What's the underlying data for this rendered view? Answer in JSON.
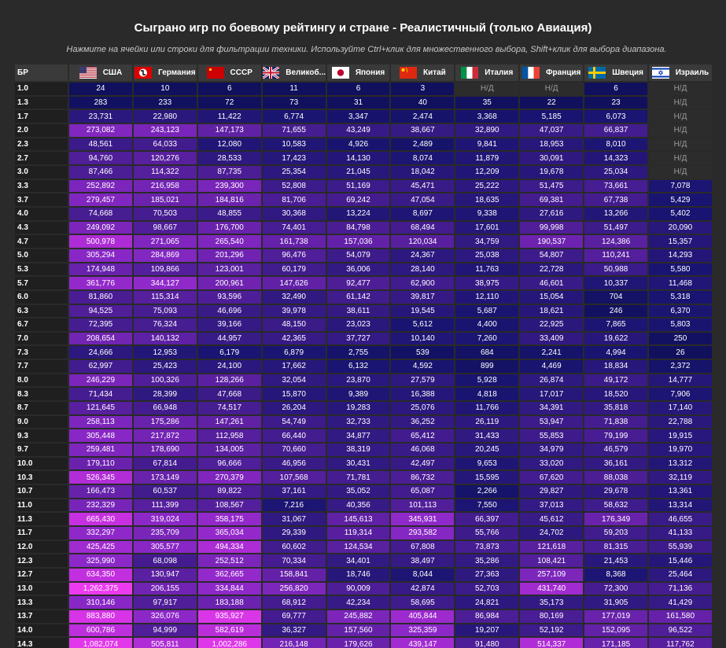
{
  "title": "Сыграно игр по боевому рейтингу и стране - Реалистичный (только Авиация)",
  "hint": "Нажмите на ячейки или строки для фильтрации техники. Используйте Ctrl+клик для множественного выбора, Shift+клик для выбора диапазона.",
  "br_header": "БР",
  "nd_label": "Н/Д",
  "countries": [
    {
      "name": "США",
      "flag": "us-flag-icon"
    },
    {
      "name": "Германия",
      "flag": "germany-flag-icon"
    },
    {
      "name": "СССР",
      "flag": "ussr-flag-icon"
    },
    {
      "name": "Великоб...",
      "flag": "uk-flag-icon"
    },
    {
      "name": "Япония",
      "flag": "japan-flag-icon"
    },
    {
      "name": "Китай",
      "flag": "china-flag-icon"
    },
    {
      "name": "Италия",
      "flag": "italy-flag-icon"
    },
    {
      "name": "Франция",
      "flag": "france-flag-icon"
    },
    {
      "name": "Швеция",
      "flag": "sweden-flag-icon"
    },
    {
      "name": "Израиль",
      "flag": "israel-flag-icon"
    }
  ],
  "rows": [
    {
      "br": "1.0",
      "values": [
        "24",
        "10",
        "6",
        "11",
        "6",
        "3",
        null,
        null,
        "6",
        null
      ]
    },
    {
      "br": "1.3",
      "values": [
        "283",
        "233",
        "72",
        "73",
        "31",
        "40",
        "35",
        "22",
        "23",
        null
      ]
    },
    {
      "br": "1.7",
      "values": [
        "23,731",
        "22,980",
        "11,422",
        "6,774",
        "3,347",
        "2,474",
        "3,368",
        "5,185",
        "6,073",
        null
      ]
    },
    {
      "br": "2.0",
      "values": [
        "273,082",
        "243,123",
        "147,173",
        "71,655",
        "43,249",
        "38,667",
        "32,890",
        "47,037",
        "66,837",
        null
      ]
    },
    {
      "br": "2.3",
      "values": [
        "48,561",
        "64,033",
        "12,080",
        "10,583",
        "4,926",
        "2,489",
        "9,841",
        "18,953",
        "8,010",
        null
      ]
    },
    {
      "br": "2.7",
      "values": [
        "94,760",
        "120,276",
        "28,533",
        "17,423",
        "14,130",
        "8,074",
        "11,879",
        "30,091",
        "14,323",
        null
      ]
    },
    {
      "br": "3.0",
      "values": [
        "87,466",
        "114,322",
        "87,735",
        "25,354",
        "21,045",
        "18,042",
        "12,209",
        "19,678",
        "25,034",
        null
      ]
    },
    {
      "br": "3.3",
      "values": [
        "252,892",
        "216,958",
        "239,300",
        "52,808",
        "51,169",
        "45,471",
        "25,222",
        "51,475",
        "73,661",
        "7,078"
      ]
    },
    {
      "br": "3.7",
      "values": [
        "279,457",
        "185,021",
        "184,816",
        "81,706",
        "69,242",
        "47,054",
        "18,635",
        "69,381",
        "67,738",
        "5,429"
      ]
    },
    {
      "br": "4.0",
      "values": [
        "74,668",
        "70,503",
        "48,855",
        "30,368",
        "13,224",
        "8,697",
        "9,338",
        "27,616",
        "13,266",
        "5,402"
      ]
    },
    {
      "br": "4.3",
      "values": [
        "249,092",
        "98,667",
        "176,700",
        "74,401",
        "84,798",
        "68,494",
        "17,601",
        "99,998",
        "51,497",
        "20,090"
      ]
    },
    {
      "br": "4.7",
      "values": [
        "500,978",
        "271,065",
        "265,540",
        "161,738",
        "157,036",
        "120,034",
        "34,759",
        "190,537",
        "124,386",
        "15,357"
      ]
    },
    {
      "br": "5.0",
      "values": [
        "305,294",
        "284,869",
        "201,296",
        "96,476",
        "54,079",
        "24,367",
        "25,038",
        "54,807",
        "110,241",
        "14,293"
      ]
    },
    {
      "br": "5.3",
      "values": [
        "174,948",
        "109,866",
        "123,001",
        "60,179",
        "36,006",
        "28,140",
        "11,763",
        "22,728",
        "50,988",
        "5,580"
      ]
    },
    {
      "br": "5.7",
      "values": [
        "361,776",
        "344,127",
        "200,961",
        "147,626",
        "92,477",
        "62,900",
        "38,975",
        "46,601",
        "10,337",
        "11,468"
      ]
    },
    {
      "br": "6.0",
      "values": [
        "81,860",
        "115,314",
        "93,596",
        "32,490",
        "61,142",
        "39,817",
        "12,110",
        "15,054",
        "704",
        "5,318"
      ]
    },
    {
      "br": "6.3",
      "values": [
        "94,525",
        "75,093",
        "46,696",
        "39,978",
        "38,611",
        "19,545",
        "5,687",
        "18,621",
        "246",
        "6,370"
      ]
    },
    {
      "br": "6.7",
      "values": [
        "72,395",
        "76,324",
        "39,166",
        "48,150",
        "23,023",
        "5,612",
        "4,400",
        "22,925",
        "7,865",
        "5,803"
      ]
    },
    {
      "br": "7.0",
      "values": [
        "208,654",
        "140,132",
        "44,957",
        "42,365",
        "37,727",
        "10,140",
        "7,260",
        "33,409",
        "19,622",
        "250"
      ]
    },
    {
      "br": "7.3",
      "values": [
        "24,666",
        "12,953",
        "6,179",
        "6,879",
        "2,755",
        "539",
        "684",
        "2,241",
        "4,994",
        "26"
      ]
    },
    {
      "br": "7.7",
      "values": [
        "62,997",
        "25,423",
        "24,100",
        "17,662",
        "6,132",
        "4,592",
        "899",
        "4,469",
        "18,834",
        "2,372"
      ]
    },
    {
      "br": "8.0",
      "values": [
        "246,229",
        "100,326",
        "128,266",
        "32,054",
        "23,870",
        "27,579",
        "5,928",
        "26,874",
        "49,172",
        "14,777"
      ]
    },
    {
      "br": "8.3",
      "values": [
        "71,434",
        "28,399",
        "47,668",
        "15,870",
        "9,389",
        "16,388",
        "4,818",
        "17,017",
        "18,520",
        "7,906"
      ]
    },
    {
      "br": "8.7",
      "values": [
        "121,645",
        "66,948",
        "74,517",
        "26,204",
        "19,283",
        "25,076",
        "11,766",
        "34,391",
        "35,818",
        "17,140"
      ]
    },
    {
      "br": "9.0",
      "values": [
        "258,113",
        "175,286",
        "147,261",
        "54,749",
        "32,733",
        "36,252",
        "26,119",
        "53,947",
        "71,838",
        "22,788"
      ]
    },
    {
      "br": "9.3",
      "values": [
        "305,448",
        "217,872",
        "112,958",
        "66,440",
        "34,877",
        "65,412",
        "31,433",
        "55,853",
        "79,199",
        "19,915"
      ]
    },
    {
      "br": "9.7",
      "values": [
        "259,481",
        "178,690",
        "134,005",
        "70,660",
        "38,319",
        "46,068",
        "20,245",
        "34,979",
        "46,579",
        "19,970"
      ]
    },
    {
      "br": "10.0",
      "values": [
        "179,110",
        "67,814",
        "96,666",
        "46,956",
        "30,431",
        "42,497",
        "9,653",
        "33,020",
        "36,161",
        "13,312"
      ]
    },
    {
      "br": "10.3",
      "values": [
        "526,345",
        "173,149",
        "270,379",
        "107,568",
        "71,781",
        "86,732",
        "15,595",
        "67,620",
        "88,038",
        "32,119"
      ]
    },
    {
      "br": "10.7",
      "values": [
        "166,473",
        "60,537",
        "89,822",
        "37,161",
        "35,052",
        "65,087",
        "2,266",
        "29,827",
        "29,678",
        "13,361"
      ]
    },
    {
      "br": "11.0",
      "values": [
        "232,329",
        "111,399",
        "108,567",
        "7,216",
        "40,356",
        "101,113",
        "7,550",
        "37,013",
        "58,632",
        "13,314"
      ]
    },
    {
      "br": "11.3",
      "values": [
        "665,430",
        "319,024",
        "358,175",
        "31,067",
        "145,613",
        "345,931",
        "66,397",
        "45,612",
        "176,349",
        "46,655"
      ]
    },
    {
      "br": "11.7",
      "values": [
        "332,297",
        "235,709",
        "365,034",
        "29,339",
        "119,314",
        "293,582",
        "55,766",
        "24,702",
        "59,203",
        "41,133"
      ]
    },
    {
      "br": "12.0",
      "values": [
        "425,425",
        "305,577",
        "494,334",
        "60,602",
        "124,534",
        "67,808",
        "73,873",
        "121,618",
        "81,315",
        "55,939"
      ]
    },
    {
      "br": "12.3",
      "values": [
        "325,990",
        "68,098",
        "252,512",
        "70,334",
        "34,401",
        "38,497",
        "35,286",
        "108,421",
        "21,453",
        "15,446"
      ]
    },
    {
      "br": "12.7",
      "values": [
        "634,350",
        "130,947",
        "362,665",
        "158,841",
        "18,746",
        "8,044",
        "27,363",
        "257,109",
        "8,368",
        "25,464"
      ]
    },
    {
      "br": "13.0",
      "values": [
        "1,262,375",
        "206,155",
        "334,844",
        "256,820",
        "90,009",
        "42,874",
        "52,703",
        "431,740",
        "72,300",
        "71,136"
      ]
    },
    {
      "br": "13.3",
      "values": [
        "310,146",
        "97,917",
        "183,188",
        "68,912",
        "42,234",
        "58,695",
        "24,821",
        "35,173",
        "31,905",
        "41,429"
      ]
    },
    {
      "br": "13.7",
      "values": [
        "883,880",
        "326,076",
        "935,927",
        "69,777",
        "245,882",
        "405,844",
        "86,984",
        "80,169",
        "177,019",
        "161,580"
      ]
    },
    {
      "br": "14.0",
      "values": [
        "600,786",
        "94,999",
        "582,619",
        "36,327",
        "157,560",
        "325,359",
        "19,207",
        "52,192",
        "152,095",
        "96,522"
      ]
    },
    {
      "br": "14.3",
      "values": [
        "1,082,074",
        "505,811",
        "1,002,286",
        "216,148",
        "179,626",
        "439,147",
        "91,480",
        "514,337",
        "171,185",
        "117,762"
      ]
    }
  ]
}
